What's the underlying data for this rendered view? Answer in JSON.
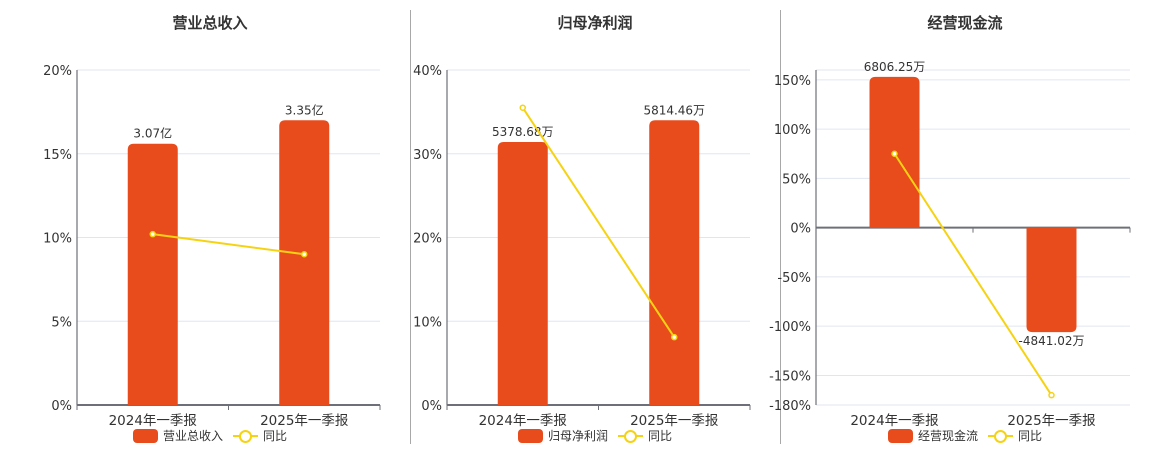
{
  "colors": {
    "bar": "#e84c1c",
    "line": "#f5d313",
    "grid": "#e0e6f0",
    "axis": "#6e7079",
    "text": "#333333"
  },
  "legend_line_label": "同比",
  "chart_data": [
    {
      "type": "bar+line",
      "title": "营业总收入",
      "categories": [
        "2024年一季报",
        "2025年一季报"
      ],
      "series": [
        {
          "name": "营业总收入",
          "type": "bar",
          "labels": [
            "3.07亿",
            "3.35亿"
          ],
          "values_pct_axis": [
            15.6,
            17.0
          ]
        },
        {
          "name": "同比",
          "type": "line",
          "values": [
            10.2,
            9.0
          ]
        }
      ],
      "yticks": [
        "0%",
        "5%",
        "10%",
        "15%",
        "20%"
      ],
      "ylim": [
        0,
        20
      ],
      "legend_position": "bottom"
    },
    {
      "type": "bar+line",
      "title": "归母净利润",
      "categories": [
        "2024年一季报",
        "2025年一季报"
      ],
      "series": [
        {
          "name": "归母净利润",
          "type": "bar",
          "labels": [
            "5378.68万",
            "5814.46万"
          ],
          "values_pct_axis": [
            31.4,
            34.0
          ]
        },
        {
          "name": "同比",
          "type": "line",
          "values": [
            35.5,
            8.1
          ]
        }
      ],
      "yticks": [
        "0%",
        "10%",
        "20%",
        "30%",
        "40%"
      ],
      "ylim": [
        0,
        40
      ],
      "legend_position": "bottom"
    },
    {
      "type": "bar+line",
      "title": "经营现金流",
      "categories": [
        "2024年一季报",
        "2025年一季报"
      ],
      "series": [
        {
          "name": "经营现金流",
          "type": "bar",
          "labels": [
            "6806.25万",
            "-4841.02万"
          ],
          "values_pct_axis": [
            153,
            -106
          ]
        },
        {
          "name": "同比",
          "type": "line",
          "values": [
            75,
            -170
          ]
        }
      ],
      "yticks": [
        "-180%",
        "-150%",
        "-100%",
        "-50%",
        "0%",
        "50%",
        "100%",
        "150%"
      ],
      "ylim": [
        -180,
        160
      ],
      "legend_position": "bottom"
    }
  ]
}
